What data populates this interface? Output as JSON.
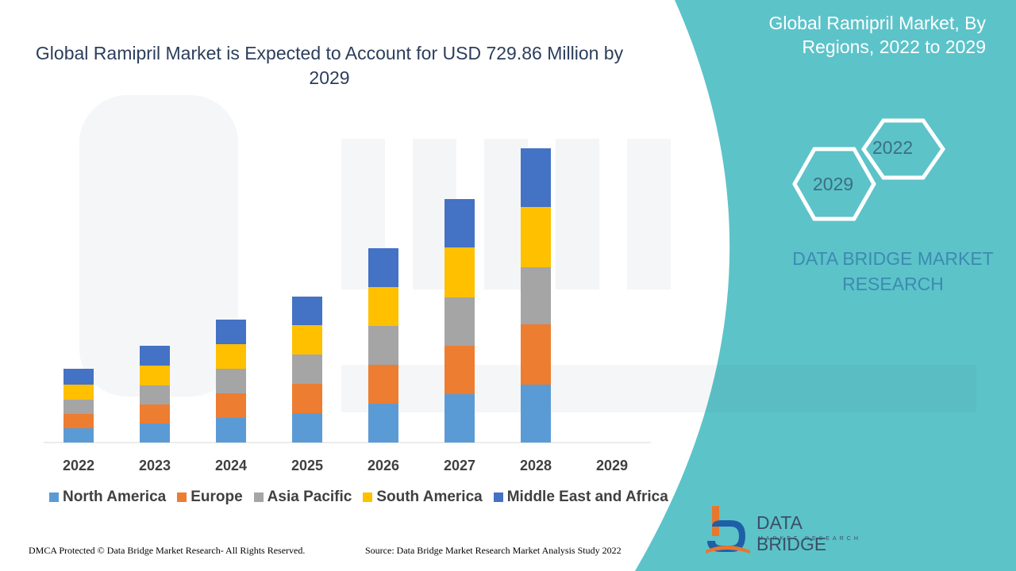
{
  "title": "Global Ramipril Market is Expected to Account for USD 729.86 Million by 2029",
  "panel": {
    "title": "Global Ramipril Market, By Regions, 2022 to 2029",
    "hex_start": "2022",
    "hex_end": "2029",
    "brand": "DATA BRIDGE MARKET RESEARCH"
  },
  "colors": {
    "teal_panel": "#5cc3c9",
    "title_text": "#2c3e5c",
    "brand_text": "#3c8bb0"
  },
  "chart_data": {
    "type": "bar",
    "stacked": true,
    "categories": [
      "2022",
      "2023",
      "2024",
      "2025",
      "2026",
      "2027",
      "2028",
      "2029"
    ],
    "series": [
      {
        "name": "North America",
        "color": "#5b9bd5",
        "values": [
          18,
          24,
          31,
          37,
          49,
          61,
          73,
          0
        ]
      },
      {
        "name": "Europe",
        "color": "#ed7d31",
        "values": [
          18,
          24,
          31,
          37,
          49,
          61,
          76,
          0
        ]
      },
      {
        "name": "Asia Pacific",
        "color": "#a5a5a5",
        "values": [
          18,
          24,
          31,
          37,
          49,
          61,
          72,
          0
        ]
      },
      {
        "name": "South America",
        "color": "#ffc000",
        "values": [
          19,
          25,
          31,
          37,
          49,
          63,
          76,
          0
        ]
      },
      {
        "name": "Middle East and Africa",
        "color": "#4472c4",
        "values": [
          20,
          25,
          31,
          36,
          49,
          61,
          74,
          0
        ]
      }
    ],
    "grid": false,
    "legend_position": "bottom"
  },
  "footer": {
    "left": "DMCA Protected © Data Bridge Market Research- All Rights Reserved.",
    "right": "Source: Data Bridge Market Research Market Analysis Study 2022"
  },
  "logo": {
    "name": "DATA BRIDGE",
    "tagline": "MARKET RESEARCH",
    "icon": "data-bridge-logo-icon"
  }
}
